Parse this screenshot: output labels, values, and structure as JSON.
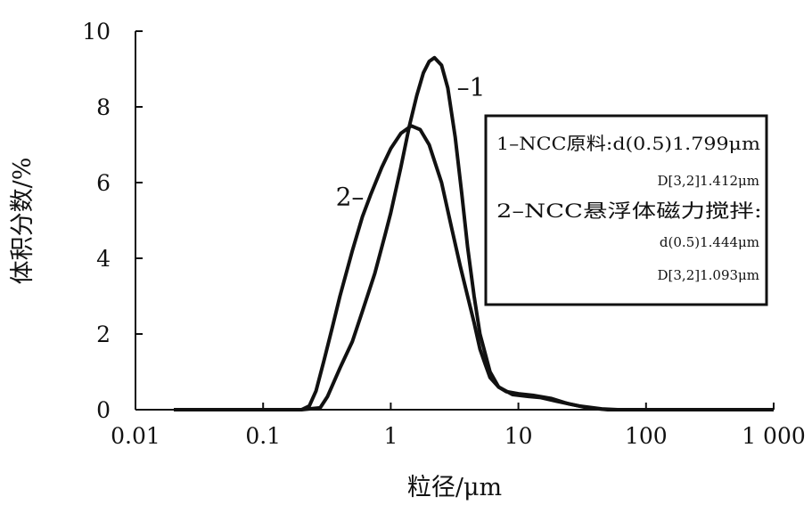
{
  "chart_data": {
    "type": "line",
    "xscale": "log",
    "xlim": [
      0.01,
      1000
    ],
    "ylim": [
      0,
      10
    ],
    "xlabel": "粒径/μm",
    "ylabel": "体积分数/%",
    "x_ticks": [
      {
        "value": 0.01,
        "label": "0.01"
      },
      {
        "value": 0.1,
        "label": "0.1"
      },
      {
        "value": 1,
        "label": "1"
      },
      {
        "value": 10,
        "label": "10"
      },
      {
        "value": 100,
        "label": "100"
      },
      {
        "value": 1000,
        "label": "1 000"
      }
    ],
    "y_ticks": [
      {
        "value": 0,
        "label": "0"
      },
      {
        "value": 2,
        "label": "2"
      },
      {
        "value": 4,
        "label": "4"
      },
      {
        "value": 6,
        "label": "6"
      },
      {
        "value": 8,
        "label": "8"
      },
      {
        "value": 10,
        "label": "10"
      }
    ],
    "series": [
      {
        "name": "1",
        "label_text": "–1",
        "label_at": {
          "x": 3.3,
          "y": 8.3
        },
        "points": [
          [
            0.02,
            0
          ],
          [
            0.2,
            0
          ],
          [
            0.28,
            0.05
          ],
          [
            0.32,
            0.35
          ],
          [
            0.4,
            1.1
          ],
          [
            0.5,
            1.8
          ],
          [
            0.6,
            2.6
          ],
          [
            0.75,
            3.6
          ],
          [
            0.9,
            4.6
          ],
          [
            1.0,
            5.2
          ],
          [
            1.2,
            6.4
          ],
          [
            1.4,
            7.5
          ],
          [
            1.6,
            8.3
          ],
          [
            1.8,
            8.9
          ],
          [
            2.0,
            9.2
          ],
          [
            2.2,
            9.3
          ],
          [
            2.5,
            9.1
          ],
          [
            2.8,
            8.5
          ],
          [
            3.2,
            7.2
          ],
          [
            3.6,
            5.7
          ],
          [
            4.0,
            4.3
          ],
          [
            4.5,
            3.0
          ],
          [
            5.0,
            2.0
          ],
          [
            6.0,
            1.0
          ],
          [
            7.0,
            0.6
          ],
          [
            9.0,
            0.4
          ],
          [
            12,
            0.35
          ],
          [
            15,
            0.32
          ],
          [
            20,
            0.22
          ],
          [
            30,
            0.1
          ],
          [
            45,
            0.02
          ],
          [
            60,
            0
          ],
          [
            1000,
            0
          ]
        ]
      },
      {
        "name": "2",
        "label_text": "2–",
        "label_at": {
          "x": 0.37,
          "y": 5.4
        },
        "points": [
          [
            0.02,
            0
          ],
          [
            0.2,
            0
          ],
          [
            0.23,
            0.1
          ],
          [
            0.26,
            0.5
          ],
          [
            0.3,
            1.3
          ],
          [
            0.35,
            2.2
          ],
          [
            0.4,
            3.0
          ],
          [
            0.5,
            4.2
          ],
          [
            0.6,
            5.1
          ],
          [
            0.7,
            5.7
          ],
          [
            0.85,
            6.4
          ],
          [
            1.0,
            6.9
          ],
          [
            1.2,
            7.3
          ],
          [
            1.45,
            7.5
          ],
          [
            1.7,
            7.4
          ],
          [
            2.0,
            7.0
          ],
          [
            2.5,
            6.0
          ],
          [
            3.0,
            4.8
          ],
          [
            3.5,
            3.8
          ],
          [
            4.0,
            3.0
          ],
          [
            4.5,
            2.3
          ],
          [
            5.0,
            1.6
          ],
          [
            5.5,
            1.2
          ],
          [
            6.0,
            0.85
          ],
          [
            7.0,
            0.6
          ],
          [
            8.0,
            0.48
          ],
          [
            10,
            0.42
          ],
          [
            13,
            0.38
          ],
          [
            18,
            0.3
          ],
          [
            25,
            0.15
          ],
          [
            35,
            0.05
          ],
          [
            50,
            0
          ],
          [
            1000,
            0
          ]
        ]
      }
    ],
    "legend_box": {
      "lines": [
        "1–NCC原料:d(0.5)1.799μm",
        "D[3,2]1.412μm",
        "2–NCC悬浮体磁力搅拌:",
        "d(0.5)1.444μm",
        "D[3,2]1.093μm"
      ]
    }
  }
}
